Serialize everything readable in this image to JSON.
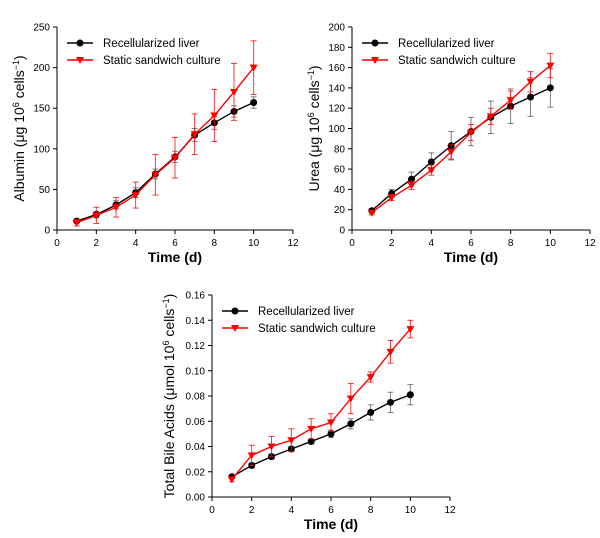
{
  "chart_data": [
    {
      "type": "line",
      "ylabel": "Albumin (μg 10⁶ cells⁻¹)",
      "ylabel_parts": [
        "Albumin (",
        "μg 10",
        "6",
        " cells",
        "−1",
        ")"
      ],
      "xlabel": "Time (d)",
      "xlim": [
        0,
        12
      ],
      "ylim": [
        0,
        250
      ],
      "xticks": [
        0,
        2,
        4,
        6,
        8,
        10,
        12
      ],
      "yticks": [
        0,
        50,
        100,
        150,
        200,
        250
      ],
      "legend_position": "top-left",
      "series": [
        {
          "name": "Recellularized liver",
          "color": "#000000",
          "marker": "circle",
          "x": [
            1,
            2,
            3,
            4,
            5,
            6,
            7,
            8,
            9,
            10
          ],
          "values": [
            11,
            19,
            31,
            46,
            69,
            90,
            117,
            132,
            146,
            157
          ],
          "errors": [
            2,
            4,
            5,
            6,
            6,
            7,
            8,
            8,
            7,
            7
          ]
        },
        {
          "name": "Static sandwich culture",
          "color": "#ff0000",
          "marker": "triangle-down",
          "x": [
            1,
            2,
            3,
            4,
            5,
            6,
            7,
            8,
            9,
            10
          ],
          "values": [
            9,
            18,
            28,
            43,
            68,
            89,
            118,
            141,
            170,
            200
          ],
          "errors": [
            4,
            10,
            12,
            16,
            25,
            25,
            25,
            32,
            35,
            33
          ]
        }
      ]
    },
    {
      "type": "line",
      "ylabel": "Urea (μg 10⁶ cells⁻¹)",
      "ylabel_parts": [
        "Urea (",
        "μg 10",
        "6",
        " cells",
        "−1",
        ")"
      ],
      "xlabel": "Time (d)",
      "xlim": [
        0,
        12
      ],
      "ylim": [
        0,
        200
      ],
      "xticks": [
        0,
        2,
        4,
        6,
        8,
        10,
        12
      ],
      "yticks": [
        0,
        20,
        40,
        60,
        80,
        100,
        120,
        140,
        160,
        180,
        200
      ],
      "legend_position": "top-left",
      "series": [
        {
          "name": "Recellularized liver",
          "color": "#000000",
          "marker": "circle",
          "x": [
            1,
            2,
            3,
            4,
            5,
            6,
            7,
            8,
            9,
            10
          ],
          "values": [
            19,
            36,
            50,
            67,
            83,
            97,
            111,
            122,
            131,
            140
          ],
          "errors": [
            2,
            4,
            7,
            9,
            14,
            14,
            16,
            17,
            19,
            19
          ]
        },
        {
          "name": "Static sandwich culture",
          "color": "#ff0000",
          "marker": "triangle-down",
          "x": [
            1,
            2,
            3,
            4,
            5,
            6,
            7,
            8,
            9,
            10
          ],
          "values": [
            17,
            32,
            44,
            59,
            77,
            96,
            112,
            128,
            146,
            162
          ],
          "errors": [
            2,
            3,
            4,
            5,
            7,
            8,
            8,
            9,
            10,
            12
          ]
        }
      ]
    },
    {
      "type": "line",
      "ylabel": "Total Bile Acids (μmol 10⁶ cells⁻¹)",
      "ylabel_parts": [
        "Total Bile Acids (",
        "μmol 10",
        "6",
        " cells",
        "−1",
        ")"
      ],
      "xlabel": "Time (d)",
      "xlim": [
        0,
        12
      ],
      "ylim": [
        0,
        0.16
      ],
      "xticks": [
        0,
        2,
        4,
        6,
        8,
        10,
        12
      ],
      "yticks": [
        0.0,
        0.02,
        0.04,
        0.06,
        0.08,
        0.1,
        0.12,
        0.14,
        0.16
      ],
      "ytick_decimals": 2,
      "legend_position": "top-left",
      "series": [
        {
          "name": "Recellularized liver",
          "color": "#000000",
          "marker": "circle",
          "x": [
            1,
            2,
            3,
            4,
            5,
            6,
            7,
            8,
            9,
            10
          ],
          "values": [
            0.016,
            0.025,
            0.032,
            0.038,
            0.044,
            0.05,
            0.058,
            0.067,
            0.075,
            0.081
          ],
          "errors": [
            0.001,
            0.002,
            0.002,
            0.002,
            0.002,
            0.003,
            0.004,
            0.006,
            0.008,
            0.008
          ]
        },
        {
          "name": "Static sandwich culture",
          "color": "#ff0000",
          "marker": "triangle-down",
          "x": [
            1,
            2,
            3,
            4,
            5,
            6,
            7,
            8,
            9,
            10
          ],
          "values": [
            0.014,
            0.033,
            0.04,
            0.045,
            0.054,
            0.059,
            0.078,
            0.095,
            0.115,
            0.133
          ],
          "errors": [
            0.002,
            0.008,
            0.008,
            0.009,
            0.008,
            0.007,
            0.012,
            0.004,
            0.009,
            0.007
          ]
        }
      ]
    }
  ]
}
